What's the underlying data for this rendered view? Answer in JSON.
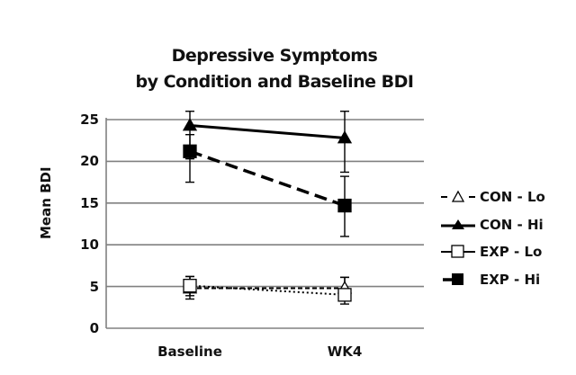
{
  "chart_data": {
    "type": "line",
    "title": "Depressive Symptoms by Condition and Baseline BDI",
    "title_lines": [
      "Depressive Symptoms",
      "by Condition and Baseline BDI"
    ],
    "xlabel": "",
    "ylabel": "Mean BDI",
    "categories": [
      "Baseline",
      "WK4"
    ],
    "ylim": [
      0,
      25
    ],
    "yticks": [
      "0",
      "5",
      "10",
      "15",
      "20",
      "25"
    ],
    "grid": "horizontal",
    "legend_position": "right",
    "series": [
      {
        "name": "CON - Lo",
        "values": [
          4.8,
          4.8
        ],
        "error_low": [
          3.5,
          3.5
        ],
        "error_high": [
          6.2,
          6.1
        ],
        "marker": "triangle-open",
        "line": "dashed-short"
      },
      {
        "name": "CON - Hi",
        "values": [
          24.3,
          22.8
        ],
        "error_low": [
          20.3,
          18.7
        ],
        "error_high": [
          26.0,
          26.0
        ],
        "marker": "triangle-filled",
        "line": "solid"
      },
      {
        "name": "EXP - Lo",
        "values": [
          5.1,
          4.0
        ],
        "error_low": [
          3.9,
          2.9
        ],
        "error_high": [
          6.2,
          6.1
        ],
        "marker": "square-open",
        "line": "dotted"
      },
      {
        "name": "EXP - Hi",
        "values": [
          21.2,
          14.7
        ],
        "error_low": [
          17.5,
          11.0
        ],
        "error_high": [
          23.2,
          18.2
        ],
        "marker": "square-filled",
        "line": "dashed-long"
      }
    ]
  },
  "legend": {
    "items": [
      "CON - Lo",
      "CON - Hi",
      "EXP - Lo",
      "EXP - Hi"
    ]
  },
  "colors": {
    "line": "#000000",
    "grid": "#7f7f7f",
    "text": "#111111"
  }
}
